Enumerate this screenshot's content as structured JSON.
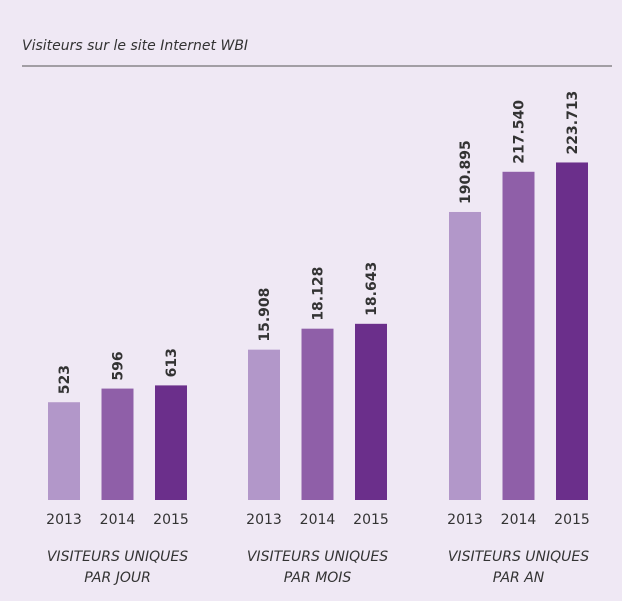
{
  "title": "Visiteurs sur le site Internet WBI",
  "chart_data": [
    {
      "type": "bar",
      "xlabel": [
        "VISITEURS UNIQUES",
        "PAR JOUR"
      ],
      "categories": [
        "2013",
        "2014",
        "2015"
      ],
      "values": [
        523,
        596,
        613
      ],
      "colors": [
        "#b297c9",
        "#8f5fa8",
        "#6b2f8b"
      ],
      "ylim": [
        0,
        2300
      ]
    },
    {
      "type": "bar",
      "xlabel": [
        "VISITEURS UNIQUES",
        "PAR MOIS"
      ],
      "categories": [
        "2013",
        "2014",
        "2015"
      ],
      "values": [
        15908,
        18128,
        18643
      ],
      "value_labels": [
        "15.908",
        "18.128",
        "18.643"
      ],
      "colors": [
        "#b297c9",
        "#8f5fa8",
        "#6b2f8b"
      ],
      "ylim": [
        0,
        45500
      ]
    },
    {
      "type": "bar",
      "xlabel": [
        "VISITEURS UNIQUES",
        "PAR AN"
      ],
      "categories": [
        "2013",
        "2014",
        "2015"
      ],
      "values": [
        190895,
        217540,
        223713
      ],
      "value_labels": [
        "190.895",
        "217.540",
        "223.713"
      ],
      "colors": [
        "#b297c9",
        "#8f5fa8",
        "#6b2f8b"
      ],
      "ylim": [
        0,
        285000
      ]
    }
  ]
}
